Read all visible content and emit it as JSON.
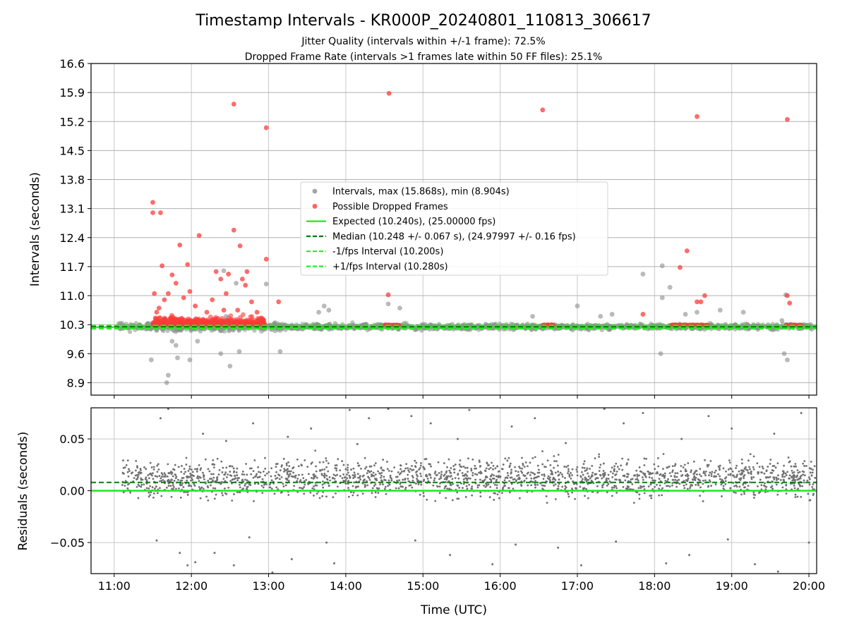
{
  "chart_data": [
    {
      "type": "scatter",
      "title": "Timestamp Intervals - KR000P_20240801_110813_306617",
      "subtitle_lines": [
        "Jitter Quality (intervals within +/-1 frame): 72.5%",
        "Dropped Frame Rate (intervals >1 frames late within 50 FF files): 25.1%"
      ],
      "ylabel": "Intervals (seconds)",
      "xlabel": "",
      "xlim": [
        10.7,
        20.1
      ],
      "ylim": [
        8.6,
        16.6
      ],
      "yticks": [
        8.9,
        9.6,
        10.3,
        11.0,
        11.7,
        12.4,
        13.1,
        13.8,
        14.5,
        15.2,
        15.9,
        16.6
      ],
      "ytick_labels": [
        "8.9",
        "9.6",
        "10.3",
        "11.0",
        "11.7",
        "12.4",
        "13.1",
        "13.8",
        "14.5",
        "15.2",
        "15.9",
        "16.6"
      ],
      "grid": true,
      "legend": {
        "position": "center",
        "entries": [
          {
            "label": "Intervals, max (15.868s), min (8.904s)",
            "marker": "circle",
            "color": "#8c8c8c"
          },
          {
            "label": "Possible Dropped Frames",
            "marker": "circle",
            "color": "#ff3b3b"
          },
          {
            "label": "Expected (10.240s), (25.00000 fps)",
            "marker": "solid",
            "color": "#1ee81e"
          },
          {
            "label": "Median (10.248 +/- 0.067 s), (24.97997 +/- 0.16 fps)",
            "marker": "dashed",
            "color": "#0a7a0a"
          },
          {
            "label": "-1/fps Interval (10.200s)",
            "marker": "dashed",
            "color": "#22ee22"
          },
          {
            "label": "+1/fps Interval (10.280s)",
            "marker": "dashed",
            "color": "#22ee22"
          }
        ]
      },
      "lines": {
        "expected": 10.24,
        "median": 10.248,
        "minus_one_frame": 10.2,
        "plus_one_frame": 10.28
      },
      "series": [
        {
          "name": "Possible Dropped Frames",
          "color": "#ff3b3b",
          "x": [
            11.5,
            11.5,
            11.6,
            11.52,
            11.62,
            11.85,
            11.95,
            12.1,
            12.32,
            12.48,
            12.55,
            12.63,
            12.72,
            12.97,
            13.13,
            11.55,
            11.58,
            11.65,
            11.7,
            11.75,
            11.8,
            11.9,
            11.98,
            12.05,
            12.2,
            12.27,
            12.38,
            12.42,
            12.45,
            12.6,
            12.66,
            12.7,
            12.78,
            12.85,
            14.55,
            18.42,
            18.33,
            18.55,
            18.6,
            18.65,
            17.85,
            19.72,
            19.75,
            12.55,
            12.97,
            14.56,
            16.55,
            18.55,
            19.72
          ],
          "y": [
            13.25,
            13.0,
            13.0,
            11.05,
            11.72,
            12.22,
            11.75,
            12.45,
            11.58,
            11.52,
            12.58,
            12.2,
            11.58,
            11.88,
            10.85,
            10.6,
            10.7,
            10.9,
            11.05,
            11.5,
            11.3,
            10.95,
            11.1,
            10.75,
            10.6,
            10.9,
            11.4,
            10.65,
            11.05,
            10.65,
            11.4,
            11.25,
            10.85,
            10.6,
            11.02,
            12.08,
            11.68,
            10.85,
            10.85,
            11.0,
            10.55,
            11.0,
            10.82,
            15.62,
            15.05,
            15.88,
            15.48,
            15.32,
            15.25
          ]
        },
        {
          "name": "Intervals, max (15.868s), min (8.904s)",
          "color": "#8c8c8c",
          "x": [
            11.48,
            11.75,
            11.82,
            11.98,
            12.38,
            12.5,
            12.42,
            12.58,
            12.62,
            12.97,
            13.15,
            11.8,
            12.08,
            13.65,
            13.72,
            13.78,
            14.55,
            14.7,
            16.42,
            17.0,
            17.3,
            17.45,
            17.85,
            18.1,
            18.2,
            18.4,
            18.55,
            18.85,
            19.15,
            19.65,
            19.7,
            19.72,
            18.08,
            19.68,
            11.68,
            11.7,
            12.45,
            18.1
          ],
          "y": [
            9.45,
            9.9,
            9.5,
            9.45,
            9.6,
            9.3,
            11.6,
            11.3,
            9.65,
            11.28,
            9.65,
            9.8,
            9.9,
            10.6,
            10.75,
            10.65,
            10.8,
            10.7,
            10.5,
            10.75,
            10.5,
            10.55,
            11.52,
            11.72,
            11.2,
            10.55,
            10.6,
            10.65,
            10.6,
            10.4,
            11.02,
            9.45,
            9.6,
            9.6,
            8.9,
            9.08,
            10.5,
            10.95
          ]
        }
      ]
    },
    {
      "type": "scatter",
      "title": "",
      "ylabel": "Residuals (seconds)",
      "xlabel": "Time (UTC)",
      "xlim": [
        10.7,
        20.1
      ],
      "ylim": [
        -0.08,
        0.08
      ],
      "yticks": [
        -0.05,
        0.0,
        0.05
      ],
      "ytick_labels": [
        "−0.05",
        "0.00",
        "0.05"
      ],
      "xticks": [
        11,
        12,
        13,
        14,
        15,
        16,
        17,
        18,
        19,
        20
      ],
      "xtick_labels": [
        "11:00",
        "12:00",
        "13:00",
        "14:00",
        "15:00",
        "16:00",
        "17:00",
        "18:00",
        "19:00",
        "20:00"
      ],
      "grid": true,
      "lines": {
        "expected": 0.0,
        "median": 0.008
      },
      "series": [
        {
          "name": "Residuals",
          "color": "#707070",
          "x": [
            11.6,
            11.7,
            11.95,
            12.05,
            12.3,
            12.55,
            12.8,
            13.05,
            13.3,
            13.55,
            13.85,
            14.05,
            14.3,
            14.55,
            14.85,
            15.1,
            15.35,
            15.6,
            15.9,
            16.15,
            16.45,
            16.75,
            17.05,
            17.35,
            17.6,
            17.85,
            18.15,
            18.45,
            18.7,
            19.0,
            19.3,
            19.6,
            19.9,
            11.55,
            11.85,
            12.15,
            12.45,
            12.75,
            13.25,
            13.75,
            14.15,
            14.9,
            15.45,
            16.2,
            16.85,
            17.5,
            18.35,
            18.95,
            19.55,
            20.0
          ],
          "y": [
            0.07,
            0.079,
            -0.072,
            -0.069,
            -0.06,
            -0.072,
            0.065,
            -0.079,
            -0.066,
            0.06,
            -0.07,
            0.078,
            0.07,
            0.079,
            0.072,
            0.065,
            -0.062,
            0.078,
            -0.071,
            0.062,
            0.07,
            -0.055,
            -0.072,
            0.079,
            0.065,
            0.075,
            -0.07,
            -0.062,
            0.072,
            0.06,
            -0.071,
            -0.078,
            0.075,
            -0.048,
            -0.06,
            0.055,
            0.048,
            -0.045,
            0.052,
            -0.05,
            0.045,
            -0.048,
            0.05,
            -0.052,
            0.046,
            -0.049,
            0.05,
            -0.047,
            0.055,
            -0.05
          ]
        }
      ]
    }
  ]
}
